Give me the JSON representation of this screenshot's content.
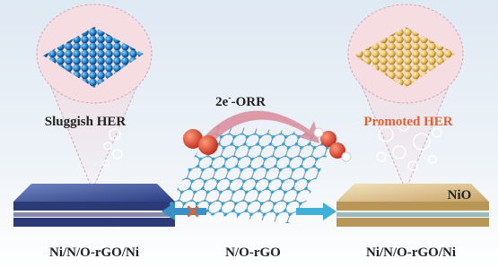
{
  "left_panel": {
    "label": "Sluggish HER",
    "electrode": "Ni/N/O-rGO/Ni"
  },
  "right_panel": {
    "label": "Promoted HER",
    "electrode": "Ni/N/O-rGO/Ni",
    "layer": "NiO"
  },
  "center": {
    "reaction": {
      "base": "2e",
      "superscript": "-",
      "rest": "-ORR"
    },
    "material": "N/O-rGO"
  }
}
